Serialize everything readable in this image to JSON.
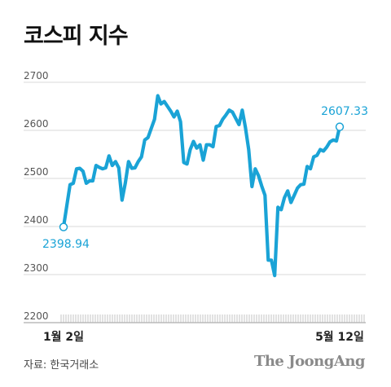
{
  "title": "코스피 지수",
  "source": "자료: 한국거래소",
  "brand": "The JoongAng",
  "colors": {
    "line": "#1aa3d6",
    "label": "#1aa3d6",
    "grid": "#d8d8d8",
    "text": "#555555"
  },
  "chart_data": {
    "type": "line",
    "title": "코스피 지수",
    "xlabel": "",
    "ylabel": "",
    "ylim": [
      2200,
      2700
    ],
    "yticks": [
      2200,
      2300,
      2400,
      2500,
      2600,
      2700
    ],
    "xtick_labels": [
      "1월 2일",
      "5월 12일"
    ],
    "annotations": [
      {
        "label": "2398.94",
        "point": "first"
      },
      {
        "label": "2607.33",
        "point": "last"
      }
    ],
    "series": [
      {
        "name": "",
        "values": [
          2398.94,
          2443,
          2487,
          2490,
          2520,
          2521,
          2515,
          2490,
          2495,
          2495,
          2527,
          2523,
          2520,
          2522,
          2547,
          2527,
          2535,
          2522,
          2455,
          2490,
          2535,
          2521,
          2522,
          2535,
          2545,
          2580,
          2585,
          2604,
          2623,
          2672,
          2655,
          2660,
          2650,
          2640,
          2628,
          2640,
          2618,
          2533,
          2530,
          2560,
          2577,
          2563,
          2570,
          2538,
          2570,
          2570,
          2566,
          2608,
          2610,
          2623,
          2632,
          2642,
          2638,
          2625,
          2612,
          2642,
          2606,
          2560,
          2483,
          2520,
          2506,
          2484,
          2465,
          2330,
          2330,
          2298,
          2440,
          2435,
          2460,
          2474,
          2450,
          2465,
          2480,
          2487,
          2488,
          2525,
          2520,
          2545,
          2548,
          2560,
          2557,
          2565,
          2576,
          2580,
          2578,
          2607.33
        ]
      }
    ]
  }
}
